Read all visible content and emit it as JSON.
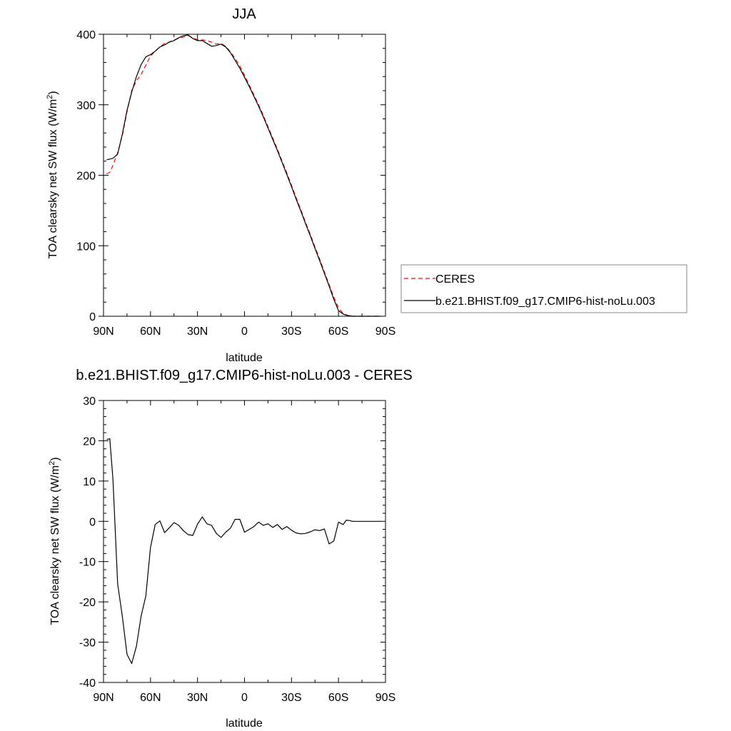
{
  "chart_data": [
    {
      "type": "line",
      "title": "JJA",
      "xlabel": "latitude",
      "ylabel": "TOA clearsky net SW flux (W/m",
      "ylabel_sup": "2",
      "ylabel_close": ")",
      "xlim": [
        90,
        -90
      ],
      "ylim": [
        0,
        400
      ],
      "xticks": [
        90,
        60,
        30,
        0,
        -30,
        -60,
        -90
      ],
      "xtick_labels": [
        "90N",
        "60N",
        "30N",
        "0",
        "30S",
        "60S",
        "90S"
      ],
      "yticks": [
        0,
        100,
        200,
        300,
        400
      ],
      "ytick_labels": [
        "0",
        "100",
        "200",
        "300",
        "400"
      ],
      "legend": {
        "placement": "right",
        "entries": [
          "CERES",
          "b.e21.BHIST.f09_g17.CMIP6-hist-noLu.003"
        ]
      },
      "series": [
        {
          "name": "CERES",
          "color": "#ff0000",
          "style": "dashed",
          "x": [
            88,
            86,
            84,
            81,
            78,
            75,
            72,
            69,
            66,
            63,
            60,
            57,
            54,
            51,
            48,
            45,
            42,
            39,
            36,
            33,
            30,
            27,
            24,
            21,
            18,
            15,
            12,
            9,
            6,
            3,
            0,
            -3,
            -6,
            -9,
            -12,
            -15,
            -18,
            -21,
            -24,
            -27,
            -30,
            -33,
            -36,
            -39,
            -42,
            -45,
            -48,
            -51,
            -54,
            -57,
            -60,
            -63,
            -66,
            -69,
            -72,
            -75,
            -78,
            -81,
            -84,
            -87
          ],
          "y": [
            202,
            204,
            214,
            232,
            256,
            290,
            320,
            334,
            343,
            356,
            369,
            376,
            382,
            387,
            389,
            392,
            394,
            396,
            398,
            395,
            392,
            392,
            391,
            389,
            386,
            387,
            383,
            375,
            366,
            355,
            342,
            328,
            314,
            300,
            285,
            269,
            253,
            237,
            220,
            203,
            186,
            168,
            151,
            133,
            116,
            98,
            81,
            63,
            45,
            27,
            12,
            4,
            1,
            0,
            0,
            0,
            0,
            0,
            0,
            0
          ]
        },
        {
          "name": "b.e21.BHIST.f09_g17.CMIP6-hist-noLu.003",
          "color": "#000000",
          "style": "solid",
          "x": [
            88,
            86,
            84,
            81,
            78,
            75,
            72,
            69,
            66,
            63,
            60,
            57,
            54,
            51,
            48,
            45,
            42,
            39,
            36,
            33,
            30,
            27,
            24,
            21,
            18,
            15,
            12,
            9,
            6,
            3,
            0,
            -3,
            -6,
            -9,
            -12,
            -15,
            -18,
            -21,
            -24,
            -27,
            -30,
            -33,
            -36,
            -39,
            -42,
            -45,
            -48,
            -51,
            -54,
            -57,
            -60,
            -63,
            -66,
            -69,
            -72,
            -75,
            -78,
            -81,
            -84,
            -87
          ],
          "y": [
            222,
            223,
            224,
            230,
            258,
            292,
            318,
            340,
            357,
            368,
            371,
            376,
            382,
            385,
            389,
            391,
            395,
            398,
            399,
            394,
            391,
            391,
            387,
            383,
            384,
            386,
            382,
            374,
            363,
            352,
            339,
            326,
            312,
            298,
            283,
            267,
            251,
            235,
            218,
            201,
            184,
            166,
            149,
            131,
            114,
            96,
            79,
            61,
            43,
            24,
            8,
            3,
            1,
            0,
            0,
            0,
            0,
            0,
            0,
            0
          ]
        }
      ]
    },
    {
      "type": "line",
      "title": "b.e21.BHIST.f09_g17.CMIP6-hist-noLu.003 - CERES",
      "xlabel": "latitude",
      "ylabel": "TOA clearsky net SW flux (W/m",
      "ylabel_sup": "2",
      "ylabel_close": ")",
      "xlim": [
        90,
        -90
      ],
      "ylim": [
        -40,
        30
      ],
      "xticks": [
        90,
        60,
        30,
        0,
        -30,
        -60,
        -90
      ],
      "xtick_labels": [
        "90N",
        "60N",
        "30N",
        "0",
        "30S",
        "60S",
        "90S"
      ],
      "yticks": [
        -40,
        -30,
        -20,
        -10,
        0,
        10,
        20,
        30
      ],
      "ytick_labels": [
        "-40",
        "-30",
        "-20",
        "-10",
        "0",
        "10",
        "20",
        "30"
      ],
      "series": [
        {
          "color": "#000000",
          "style": "solid",
          "x": [
            88,
            86,
            84,
            81,
            78,
            75,
            72,
            69,
            66,
            63,
            60,
            57,
            54,
            51,
            48,
            45,
            42,
            39,
            36,
            33,
            30,
            27,
            24,
            21,
            18,
            15,
            12,
            9,
            6,
            3,
            0,
            -3,
            -6,
            -9,
            -12,
            -15,
            -18,
            -21,
            -24,
            -27,
            -30,
            -33,
            -36,
            -39,
            -42,
            -45,
            -48,
            -51,
            -54,
            -57,
            -60,
            -63,
            -65,
            -67,
            -69,
            -72,
            -75,
            -78,
            -81,
            -84,
            -87
          ],
          "y": [
            20.3,
            20.5,
            10.5,
            -15.5,
            -23.5,
            -33.0,
            -35.3,
            -31.0,
            -23.5,
            -18.5,
            -6.5,
            -0.8,
            0.1,
            -2.8,
            -1.6,
            -0.3,
            -1.0,
            -2.3,
            -3.3,
            -3.5,
            -0.7,
            1.1,
            -0.6,
            -1.0,
            -3.0,
            -4.0,
            -2.7,
            -1.7,
            0.5,
            0.5,
            -2.7,
            -2.0,
            -1.3,
            -0.2,
            -1.0,
            -0.6,
            -1.5,
            -0.8,
            -2.0,
            -1.3,
            -2.2,
            -2.9,
            -3.1,
            -3.0,
            -2.6,
            -2.1,
            -2.3,
            -1.9,
            -5.6,
            -4.9,
            -0.2,
            -0.8,
            0.3,
            0.2,
            0.0,
            0.0,
            0.0,
            0.0,
            0.0,
            0.0,
            0.0
          ]
        }
      ]
    }
  ]
}
